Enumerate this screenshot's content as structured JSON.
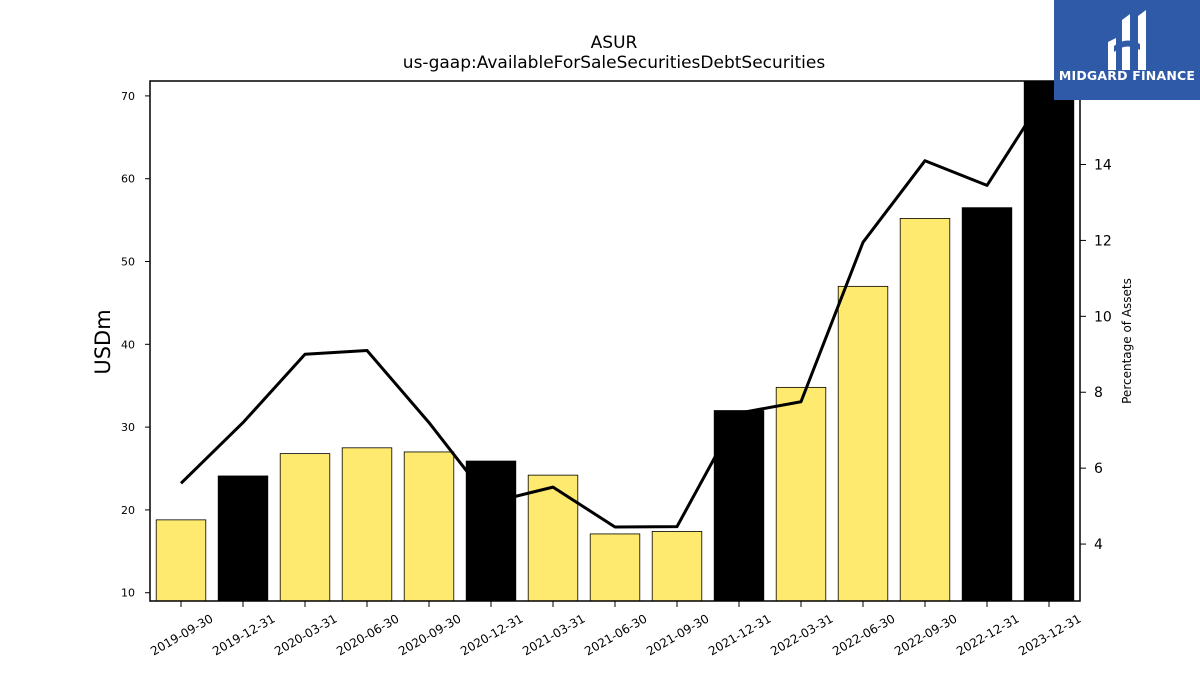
{
  "chart_data": {
    "type": "bar",
    "title": "ASUR",
    "subtitle": "us-gaap:AvailableForSaleSecuritiesDebtSecurities",
    "ylabel": "USDm",
    "y2label": "Percentage of Assets",
    "ylim": [
      9,
      71.8
    ],
    "y2lim": [
      2.5,
      16.2
    ],
    "yticks": [
      10,
      20,
      30,
      40,
      50,
      60,
      70
    ],
    "y2ticks": [
      4,
      6,
      8,
      10,
      12,
      14
    ],
    "categories": [
      "2019-09-30",
      "2019-12-31",
      "2020-03-31",
      "2020-06-30",
      "2020-09-30",
      "2020-12-31",
      "2021-03-31",
      "2021-06-30",
      "2021-09-30",
      "2021-12-31",
      "2022-03-31",
      "2022-06-30",
      "2022-09-30",
      "2022-12-31",
      "2023-12-31"
    ],
    "series": [
      {
        "type": "bar",
        "axis": "left",
        "values": [
          18.8,
          24.1,
          26.8,
          27.5,
          27.0,
          25.9,
          24.2,
          17.1,
          17.4,
          32.0,
          34.8,
          47.0,
          55.2,
          56.5,
          72.0
        ],
        "colors": [
          "#ffea70",
          "#000000",
          "#ffea70",
          "#ffea70",
          "#ffea70",
          "#000000",
          "#ffea70",
          "#ffea70",
          "#ffea70",
          "#000000",
          "#ffea70",
          "#ffea70",
          "#ffea70",
          "#000000",
          "#000000"
        ]
      },
      {
        "type": "line",
        "axis": "right",
        "color": "#000000",
        "values": [
          5.6,
          7.2,
          9.0,
          9.1,
          7.2,
          5.1,
          5.5,
          4.45,
          4.46,
          7.45,
          7.75,
          11.95,
          14.1,
          13.45,
          16.0
        ]
      }
    ],
    "grid": false,
    "legend": "none"
  },
  "logo": {
    "text": "MIDGARD FINANCE",
    "background": "#2f5aa8"
  }
}
